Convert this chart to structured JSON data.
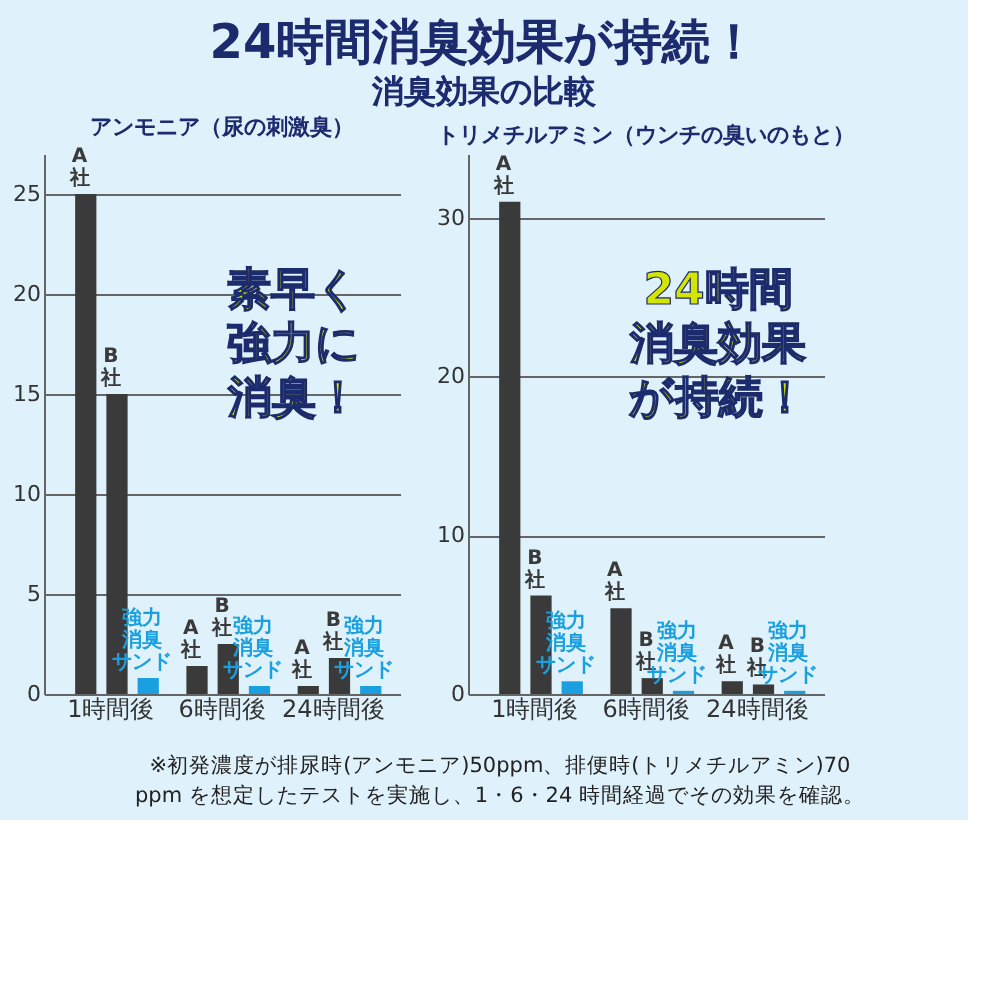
{
  "chart_data": [
    {
      "type": "bar",
      "title": "アンモニア（尿の刺激臭）",
      "categories": [
        "1時間後",
        "6時間後",
        "24時間後"
      ],
      "series": [
        {
          "name": "A社",
          "color": "#3a3a3a",
          "values": [
            25,
            1.4,
            0.4
          ]
        },
        {
          "name": "B社",
          "color": "#3a3a3a",
          "values": [
            15,
            2.5,
            1.8
          ]
        },
        {
          "name": "強力消臭サンド",
          "color": "#1aa0e0",
          "values": [
            0.8,
            0.4,
            0.4
          ]
        }
      ],
      "ylim": [
        0,
        27
      ],
      "yticks": [
        0,
        5,
        10,
        15,
        20,
        25
      ],
      "grid": "y",
      "annotations": [
        "24時間消臭効果が持続！",
        "消臭効果の比較",
        "素早く強力に消臭！",
        "※初発濃度が排尿時(アンモニア)50ppm、排便時(トリメチルアミン)70ppm を想定したテストを実施し、1・6・24 時間経過でその効果を確認。"
      ]
    },
    {
      "type": "bar",
      "title": "トリメチルアミン（ウンチの臭いのもと）",
      "categories": [
        "1時間後",
        "6時間後",
        "24時間後"
      ],
      "series": [
        {
          "name": "A社",
          "color": "#3a3a3a",
          "values": [
            31,
            5.4,
            0.8
          ]
        },
        {
          "name": "B社",
          "color": "#3a3a3a",
          "values": [
            6.2,
            1.0,
            0.6
          ]
        },
        {
          "name": "強力消臭サンド",
          "color": "#1aa0e0",
          "values": [
            0.8,
            0.2,
            0.2
          ]
        }
      ],
      "ylim": [
        0,
        34
      ],
      "yticks": [
        0,
        10,
        20,
        30
      ],
      "grid": "y",
      "annotations": [
        "24時間消臭効果が持続！"
      ]
    }
  ]
}
